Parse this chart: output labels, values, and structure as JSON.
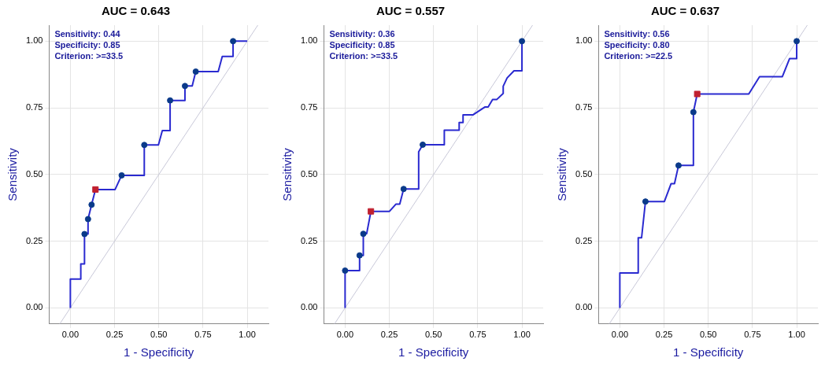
{
  "chart_data": [
    {
      "type": "line",
      "title": "AUC = 0.643",
      "xlabel": "1 - Specificity",
      "ylabel": "Sensitivity",
      "annotations": [
        "Sensitivity: 0.44",
        "Specificity: 0.85",
        "Criterion: >=33.5"
      ],
      "xlim": [
        -0.12,
        1.12
      ],
      "ylim": [
        -0.06,
        1.06
      ],
      "xticks": [
        {
          "value": 0,
          "label": "0.00"
        },
        {
          "value": 0.25,
          "label": "0.25"
        },
        {
          "value": 0.5,
          "label": "0.50"
        },
        {
          "value": 0.75,
          "label": "0.75"
        },
        {
          "value": 1,
          "label": "1.00"
        }
      ],
      "yticks": [
        {
          "value": 0,
          "label": "0.00"
        },
        {
          "value": 0.25,
          "label": "0.25"
        },
        {
          "value": 0.5,
          "label": "0.50"
        },
        {
          "value": 0.75,
          "label": "0.75"
        },
        {
          "value": 1,
          "label": "1.00"
        }
      ],
      "grid": true,
      "legend": false,
      "series": [
        {
          "type": "line",
          "color": "#c8c8d8",
          "marker": "none",
          "x": [
            -0.06,
            1.06
          ],
          "values": [
            -0.06,
            1.06
          ]
        },
        {
          "type": "line",
          "color": "#2a2ad0",
          "marker": "none",
          "x": [
            0,
            0,
            0.059,
            0.059,
            0.08,
            0.08,
            0.1,
            0.1,
            0.12,
            0.142,
            0.253,
            0.29,
            0.418,
            0.418,
            0.498,
            0.52,
            0.564,
            0.564,
            0.648,
            0.648,
            0.689,
            0.709,
            0.836,
            0.859,
            0.92,
            0.92,
            1
          ],
          "values": [
            0,
            0.108,
            0.108,
            0.165,
            0.165,
            0.277,
            0.277,
            0.333,
            0.387,
            0.444,
            0.444,
            0.497,
            0.497,
            0.611,
            0.611,
            0.665,
            0.665,
            0.778,
            0.778,
            0.832,
            0.832,
            0.886,
            0.886,
            0.943,
            0.943,
            1,
            1
          ]
        },
        {
          "type": "scatter",
          "color": "#0a3a8a",
          "marker": "circle",
          "x": [
            0.08,
            0.1,
            0.12,
            0.29,
            0.418,
            0.564,
            0.648,
            0.709,
            0.92
          ],
          "values": [
            0.277,
            0.333,
            0.387,
            0.497,
            0.611,
            0.778,
            0.832,
            0.886,
            1
          ]
        },
        {
          "type": "scatter",
          "color": "#c02030",
          "marker": "square",
          "x": [
            0.142
          ],
          "values": [
            0.444
          ]
        }
      ]
    },
    {
      "type": "line",
      "title": "AUC = 0.557",
      "xlabel": "1 - Specificity",
      "ylabel": "Sensitivity",
      "annotations": [
        "Sensitivity: 0.36",
        "Specificity: 0.85",
        "Criterion: >=33.5"
      ],
      "xlim": [
        -0.12,
        1.12
      ],
      "ylim": [
        -0.06,
        1.06
      ],
      "xticks": [
        {
          "value": 0,
          "label": "0.00"
        },
        {
          "value": 0.25,
          "label": "0.25"
        },
        {
          "value": 0.5,
          "label": "0.50"
        },
        {
          "value": 0.75,
          "label": "0.75"
        },
        {
          "value": 1,
          "label": "1.00"
        }
      ],
      "yticks": [
        {
          "value": 0,
          "label": "0.00"
        },
        {
          "value": 0.25,
          "label": "0.25"
        },
        {
          "value": 0.5,
          "label": "0.50"
        },
        {
          "value": 0.75,
          "label": "0.75"
        },
        {
          "value": 1,
          "label": "1.00"
        }
      ],
      "grid": true,
      "legend": false,
      "series": [
        {
          "type": "line",
          "color": "#c8c8d8",
          "marker": "none",
          "x": [
            -0.06,
            1.06
          ],
          "values": [
            -0.06,
            1.06
          ]
        },
        {
          "type": "line",
          "color": "#2a2ad0",
          "marker": "none",
          "x": [
            0,
            0,
            0.082,
            0.082,
            0.103,
            0.103,
            0.122,
            0.146,
            0.251,
            0.287,
            0.309,
            0.331,
            0.416,
            0.416,
            0.439,
            0.561,
            0.561,
            0.645,
            0.645,
            0.667,
            0.667,
            0.724,
            0.79,
            0.809,
            0.834,
            0.857,
            0.894,
            0.894,
            0.916,
            0.955,
            1,
            1
          ],
          "values": [
            0,
            0.14,
            0.14,
            0.197,
            0.197,
            0.278,
            0.278,
            0.362,
            0.362,
            0.389,
            0.389,
            0.446,
            0.446,
            0.585,
            0.612,
            0.612,
            0.666,
            0.666,
            0.695,
            0.695,
            0.724,
            0.724,
            0.753,
            0.753,
            0.781,
            0.781,
            0.804,
            0.831,
            0.862,
            0.889,
            0.889,
            1
          ]
        },
        {
          "type": "scatter",
          "color": "#0a3a8a",
          "marker": "circle",
          "x": [
            0,
            0.082,
            0.103,
            0.331,
            0.439,
            1
          ],
          "values": [
            0.14,
            0.197,
            0.278,
            0.446,
            0.612,
            1
          ]
        },
        {
          "type": "scatter",
          "color": "#c02030",
          "marker": "square",
          "x": [
            0.146
          ],
          "values": [
            0.362
          ]
        }
      ]
    },
    {
      "type": "line",
      "title": "AUC = 0.637",
      "xlabel": "1 - Specificity",
      "ylabel": "Sensitivity",
      "annotations": [
        "Sensitivity: 0.56",
        "Specificity: 0.80",
        "Criterion: >=22.5"
      ],
      "xlim": [
        -0.12,
        1.12
      ],
      "ylim": [
        -0.06,
        1.06
      ],
      "xticks": [
        {
          "value": 0,
          "label": "0.00"
        },
        {
          "value": 0.25,
          "label": "0.25"
        },
        {
          "value": 0.5,
          "label": "0.50"
        },
        {
          "value": 0.75,
          "label": "0.75"
        },
        {
          "value": 1,
          "label": "1.00"
        }
      ],
      "yticks": [
        {
          "value": 0,
          "label": "0.00"
        },
        {
          "value": 0.25,
          "label": "0.25"
        },
        {
          "value": 0.5,
          "label": "0.50"
        },
        {
          "value": 0.75,
          "label": "0.75"
        },
        {
          "value": 1,
          "label": "1.00"
        }
      ],
      "grid": true,
      "legend": false,
      "series": [
        {
          "type": "line",
          "color": "#c8c8d8",
          "marker": "none",
          "x": [
            -0.06,
            1.06
          ],
          "values": [
            -0.06,
            1.06
          ]
        },
        {
          "type": "line",
          "color": "#2a2ad0",
          "marker": "none",
          "x": [
            0,
            0,
            0.104,
            0.104,
            0.123,
            0.145,
            0.252,
            0.29,
            0.309,
            0.332,
            0.416,
            0.416,
            0.4375,
            0.729,
            0.79,
            0.919,
            0.96,
            1,
            1
          ],
          "values": [
            0,
            0.131,
            0.131,
            0.263,
            0.263,
            0.399,
            0.399,
            0.466,
            0.466,
            0.534,
            0.534,
            0.734,
            0.802,
            0.802,
            0.867,
            0.867,
            0.935,
            0.935,
            1
          ]
        },
        {
          "type": "scatter",
          "color": "#0a3a8a",
          "marker": "circle",
          "x": [
            0.145,
            0.332,
            0.416,
            1
          ],
          "values": [
            0.399,
            0.534,
            0.734,
            1
          ]
        },
        {
          "type": "scatter",
          "color": "#c02030",
          "marker": "square",
          "x": [
            0.4375
          ],
          "values": [
            0.802
          ]
        }
      ]
    }
  ]
}
